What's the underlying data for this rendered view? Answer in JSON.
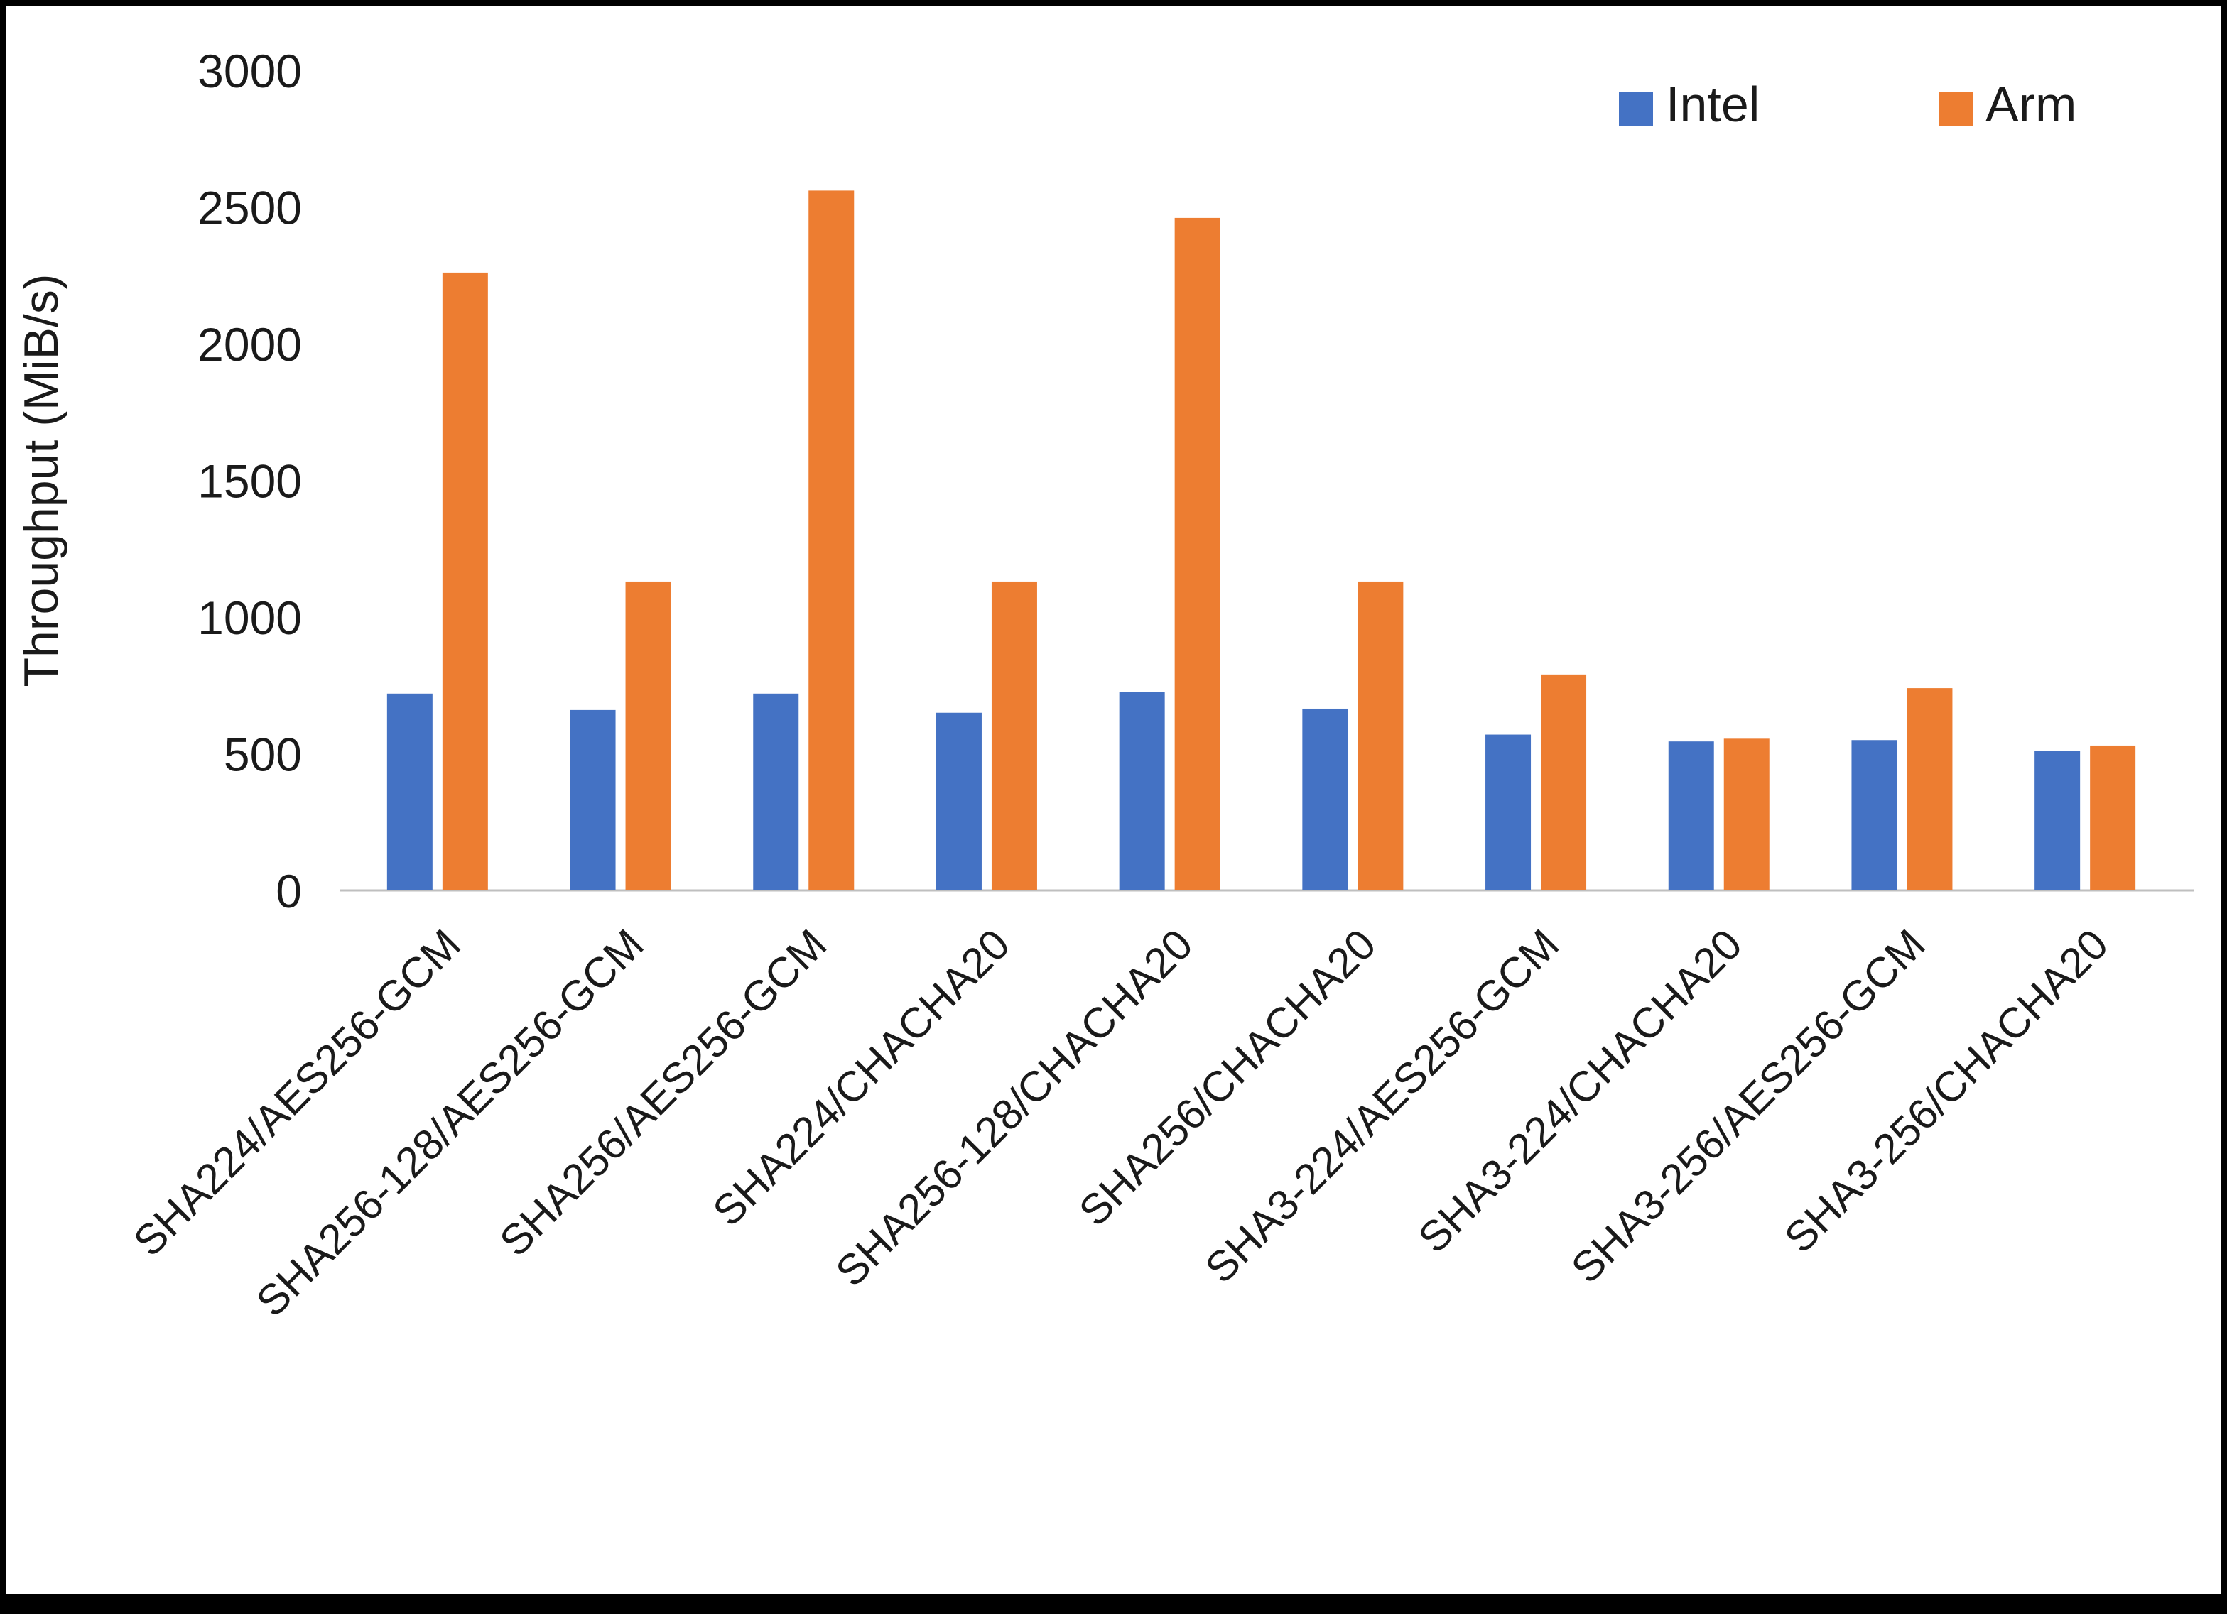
{
  "chart_data": {
    "type": "bar",
    "title": "",
    "xlabel": "",
    "ylabel": "Throughput (MiB/s)",
    "ylim": [
      0,
      3000
    ],
    "yticks": [
      0,
      500,
      1000,
      1500,
      2000,
      2500,
      3000
    ],
    "grid": false,
    "legend_position": "top-right",
    "categories": [
      "SHA224/AES256-GCM",
      "SHA256-128/AES256-GCM",
      "SHA256/AES256-GCM",
      "SHA224/CHACHA20",
      "SHA256-128/CHACHA20",
      "SHA256/CHACHA20",
      "SHA3-224/AES256-GCM",
      "SHA3-224/CHACHA20",
      "SHA3-256/AES256-GCM",
      "SHA3-256/CHACHA20"
    ],
    "series": [
      {
        "name": "Intel",
        "color": "#4472C4",
        "values": [
          720,
          660,
          720,
          650,
          725,
          665,
          570,
          545,
          550,
          510
        ]
      },
      {
        "name": "Arm",
        "color": "#ED7D31",
        "values": [
          2260,
          1130,
          2560,
          1130,
          2460,
          1130,
          790,
          555,
          740,
          530
        ]
      }
    ]
  },
  "colors": {
    "axis_line": "#bfbfbf",
    "text": "#1a1a1a",
    "frame": "#000000"
  }
}
